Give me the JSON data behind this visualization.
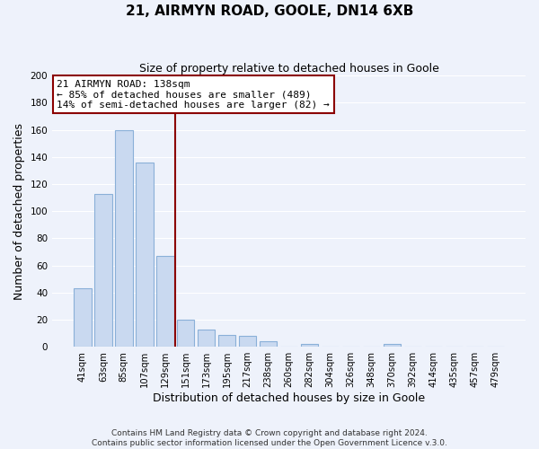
{
  "title": "21, AIRMYN ROAD, GOOLE, DN14 6XB",
  "subtitle": "Size of property relative to detached houses in Goole",
  "xlabel": "Distribution of detached houses by size in Goole",
  "ylabel": "Number of detached properties",
  "categories": [
    "41sqm",
    "63sqm",
    "85sqm",
    "107sqm",
    "129sqm",
    "151sqm",
    "173sqm",
    "195sqm",
    "217sqm",
    "238sqm",
    "260sqm",
    "282sqm",
    "304sqm",
    "326sqm",
    "348sqm",
    "370sqm",
    "392sqm",
    "414sqm",
    "435sqm",
    "457sqm",
    "479sqm"
  ],
  "values": [
    43,
    113,
    160,
    136,
    67,
    20,
    13,
    9,
    8,
    4,
    0,
    2,
    0,
    0,
    0,
    2,
    0,
    0,
    0,
    0,
    0
  ],
  "bar_color": "#c9d9f0",
  "bar_edge_color": "#8ab0d8",
  "highlight_line_color": "#8b0000",
  "ylim": [
    0,
    200
  ],
  "yticks": [
    0,
    20,
    40,
    60,
    80,
    100,
    120,
    140,
    160,
    180,
    200
  ],
  "annotation_title": "21 AIRMYN ROAD: 138sqm",
  "annotation_line1": "← 85% of detached houses are smaller (489)",
  "annotation_line2": "14% of semi-detached houses are larger (82) →",
  "annotation_box_color": "#ffffff",
  "annotation_box_edge": "#8b0000",
  "footer1": "Contains HM Land Registry data © Crown copyright and database right 2024.",
  "footer2": "Contains public sector information licensed under the Open Government Licence v.3.0.",
  "background_color": "#eef2fb",
  "grid_color": "#ffffff"
}
